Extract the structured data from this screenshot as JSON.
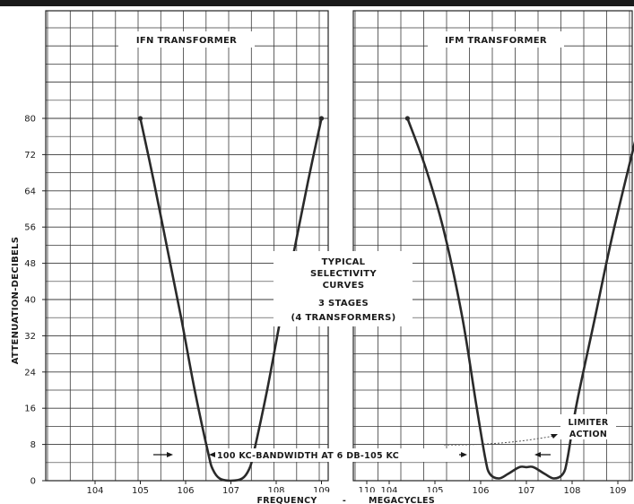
{
  "chart_data": [
    {
      "type": "line",
      "title": "IFN TRANSFORMER",
      "xlabel": "FREQUENCY - MEGACYCLES",
      "ylabel": "ATTENUATION-DECIBELS",
      "x_ticks": [
        "104",
        "105",
        "106",
        "107",
        "108",
        "109",
        "110"
      ],
      "y_ticks": [
        "0",
        "8",
        "16",
        "24",
        "32",
        "40",
        "48",
        "56",
        "64",
        "72",
        "80"
      ],
      "xlim": [
        103.6,
        110.2
      ],
      "ylim": [
        0,
        80
      ],
      "series": [
        {
          "x": [
            105.0,
            105.3,
            105.6,
            105.9,
            106.2,
            106.5,
            106.6,
            106.75,
            107.0,
            107.25,
            107.4,
            107.5,
            107.8,
            108.1,
            108.4,
            108.7,
            109.0
          ],
          "values": [
            80,
            66,
            51,
            36,
            20,
            6,
            2.5,
            0.5,
            0,
            0.5,
            2.5,
            6,
            20,
            36,
            51,
            66,
            80
          ]
        }
      ],
      "annotation": "100 KC-BANDWIDTH AT 6 DB-105 KC"
    },
    {
      "type": "line",
      "title": "IFM TRANSFORMER",
      "xlabel": "MEGACYCLES",
      "ylabel": "",
      "x_ticks": [
        "104",
        "105",
        "106",
        "107",
        "108",
        "109",
        "110"
      ],
      "y_ticks": [],
      "xlim": [
        103.45,
        110.3
      ],
      "ylim": [
        0,
        80
      ],
      "series": [
        {
          "x": [
            104.4,
            104.8,
            105.2,
            105.6,
            105.9,
            106.1,
            106.2,
            106.4,
            106.6,
            106.85,
            107.0,
            107.15,
            107.4,
            107.6,
            107.8,
            107.9,
            108.1,
            108.5,
            108.9,
            109.5
          ],
          "values": [
            80,
            69,
            55,
            36,
            17,
            5,
            1.5,
            0.5,
            1.5,
            3,
            3,
            3,
            1.5,
            0.5,
            1.5,
            5,
            17,
            36,
            55,
            80
          ]
        }
      ],
      "annotation": "LIMITER ACTION"
    }
  ],
  "center_text": [
    "TYPICAL",
    "SELECTIVITY",
    "CURVES",
    "3 STAGES",
    "(4 TRANSFORMERS)"
  ],
  "labels": {
    "left_title": "IFN TRANSFORMER",
    "right_title": "IFM TRANSFORMER",
    "ylabel": "ATTENUATION-DECIBELS",
    "xlabel_frequency": "FREQUENCY",
    "xlabel_dash": "-",
    "xlabel_megacycles": "MEGACYCLES",
    "bandwidth_note": "100 KC-BANDWIDTH AT 6 DB-105 KC",
    "limiter_line1": "LIMITER",
    "limiter_line2": "ACTION"
  }
}
